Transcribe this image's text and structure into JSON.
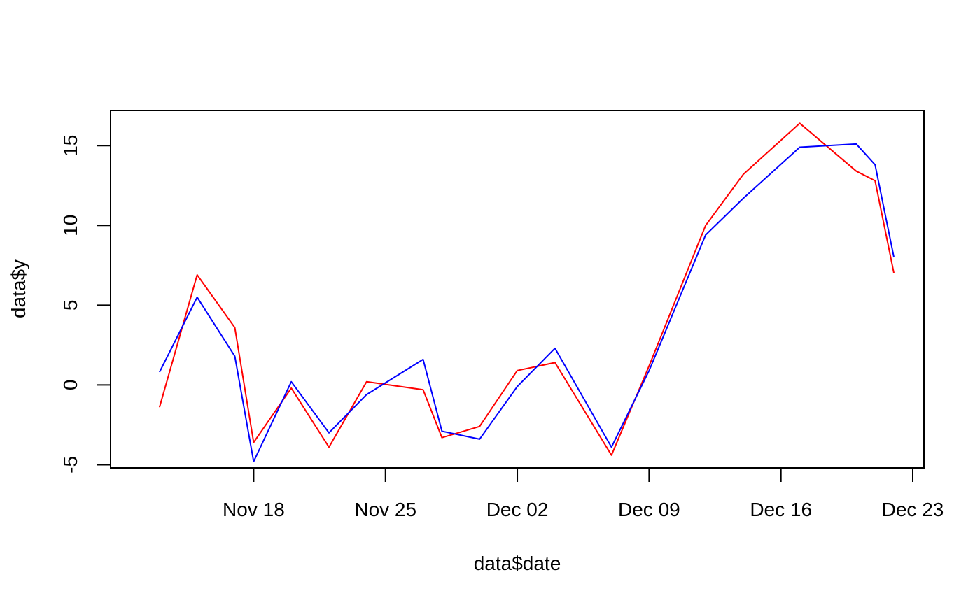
{
  "chart_data": {
    "type": "line",
    "title": "",
    "xlabel": "data$date",
    "ylabel": "data$y",
    "xlim": [
      "2024-11-12",
      "2024-12-23"
    ],
    "ylim": [
      -5.2,
      17.2
    ],
    "x_ticks": [
      {
        "date": "2024-11-18",
        "label": "Nov 18"
      },
      {
        "date": "2024-11-25",
        "label": "Nov 25"
      },
      {
        "date": "2024-12-02",
        "label": "Dec 02"
      },
      {
        "date": "2024-12-09",
        "label": "Dec 09"
      },
      {
        "date": "2024-12-16",
        "label": "Dec 16"
      },
      {
        "date": "2024-12-23",
        "label": "Dec 23"
      }
    ],
    "y_ticks": [
      {
        "value": -5,
        "label": "-5"
      },
      {
        "value": 0,
        "label": "0"
      },
      {
        "value": 5,
        "label": "5"
      },
      {
        "value": 10,
        "label": "10"
      },
      {
        "value": 15,
        "label": "15"
      }
    ],
    "grid": false,
    "legend": "none",
    "series": [
      {
        "color": "#ff0000",
        "points": [
          {
            "x": "2024-11-13",
            "y": -1.4
          },
          {
            "x": "2024-11-15",
            "y": 6.9
          },
          {
            "x": "2024-11-17",
            "y": 3.6
          },
          {
            "x": "2024-11-18",
            "y": -3.6
          },
          {
            "x": "2024-11-20",
            "y": -0.2
          },
          {
            "x": "2024-11-22",
            "y": -3.9
          },
          {
            "x": "2024-11-24",
            "y": 0.2
          },
          {
            "x": "2024-11-27",
            "y": -0.3
          },
          {
            "x": "2024-11-28",
            "y": -3.3
          },
          {
            "x": "2024-11-30",
            "y": -2.6
          },
          {
            "x": "2024-12-02",
            "y": 0.9
          },
          {
            "x": "2024-12-04",
            "y": 1.4
          },
          {
            "x": "2024-12-07",
            "y": -4.4
          },
          {
            "x": "2024-12-09",
            "y": 1.2
          },
          {
            "x": "2024-12-12",
            "y": 10.0
          },
          {
            "x": "2024-12-14",
            "y": 13.2
          },
          {
            "x": "2024-12-17",
            "y": 16.4
          },
          {
            "x": "2024-12-20",
            "y": 13.4
          },
          {
            "x": "2024-12-21",
            "y": 12.8
          },
          {
            "x": "2024-12-22",
            "y": 7.0
          }
        ]
      },
      {
        "color": "#0000ff",
        "points": [
          {
            "x": "2024-11-13",
            "y": 0.8
          },
          {
            "x": "2024-11-15",
            "y": 5.5
          },
          {
            "x": "2024-11-17",
            "y": 1.8
          },
          {
            "x": "2024-11-18",
            "y": -4.8
          },
          {
            "x": "2024-11-20",
            "y": 0.2
          },
          {
            "x": "2024-11-22",
            "y": -3.0
          },
          {
            "x": "2024-11-24",
            "y": -0.6
          },
          {
            "x": "2024-11-27",
            "y": 1.6
          },
          {
            "x": "2024-11-28",
            "y": -2.9
          },
          {
            "x": "2024-11-30",
            "y": -3.4
          },
          {
            "x": "2024-12-02",
            "y": -0.1
          },
          {
            "x": "2024-12-04",
            "y": 2.3
          },
          {
            "x": "2024-12-07",
            "y": -3.9
          },
          {
            "x": "2024-12-09",
            "y": 0.9
          },
          {
            "x": "2024-12-12",
            "y": 9.4
          },
          {
            "x": "2024-12-14",
            "y": 11.7
          },
          {
            "x": "2024-12-17",
            "y": 14.9
          },
          {
            "x": "2024-12-20",
            "y": 15.1
          },
          {
            "x": "2024-12-21",
            "y": 13.8
          },
          {
            "x": "2024-12-22",
            "y": 8.0
          }
        ]
      }
    ]
  }
}
